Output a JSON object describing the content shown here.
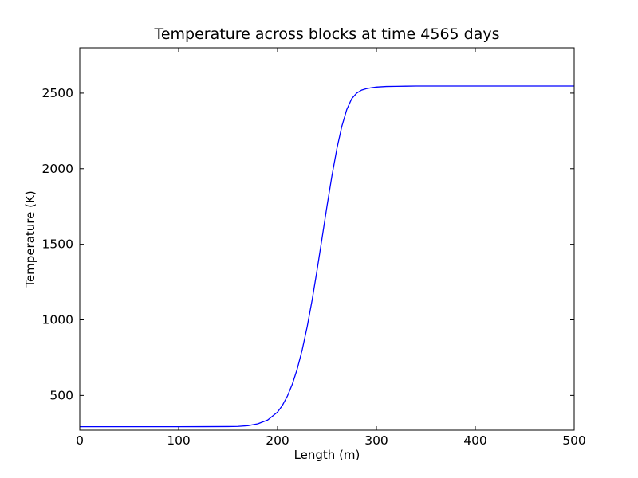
{
  "chart_data": {
    "type": "line",
    "title": "Temperature across blocks at time 4565 days",
    "xlabel": "Length (m)",
    "ylabel": "Temperature (K)",
    "xlim": [
      0,
      500
    ],
    "ylim": [
      270,
      2800
    ],
    "xticks": [
      0,
      100,
      200,
      300,
      400,
      500
    ],
    "yticks": [
      500,
      1000,
      1500,
      2000,
      2500
    ],
    "grid": false,
    "series": [
      {
        "color": "#0000ff",
        "x": [
          0,
          50,
          100,
          150,
          160,
          170,
          180,
          190,
          200,
          205,
          210,
          215,
          220,
          225,
          230,
          235,
          240,
          245,
          250,
          255,
          260,
          265,
          270,
          275,
          280,
          285,
          290,
          295,
          300,
          305,
          310,
          320,
          330,
          340,
          350,
          400,
          450,
          500
        ],
        "values": [
          293,
          293,
          293,
          294,
          295,
          300,
          312,
          337,
          390,
          435,
          496,
          575,
          677,
          803,
          955,
          1132,
          1330,
          1540,
          1752,
          1953,
          2132,
          2280,
          2391,
          2463,
          2500,
          2520,
          2530,
          2536,
          2540,
          2542,
          2544,
          2545,
          2546,
          2547,
          2547,
          2547,
          2547,
          2547
        ]
      }
    ]
  }
}
